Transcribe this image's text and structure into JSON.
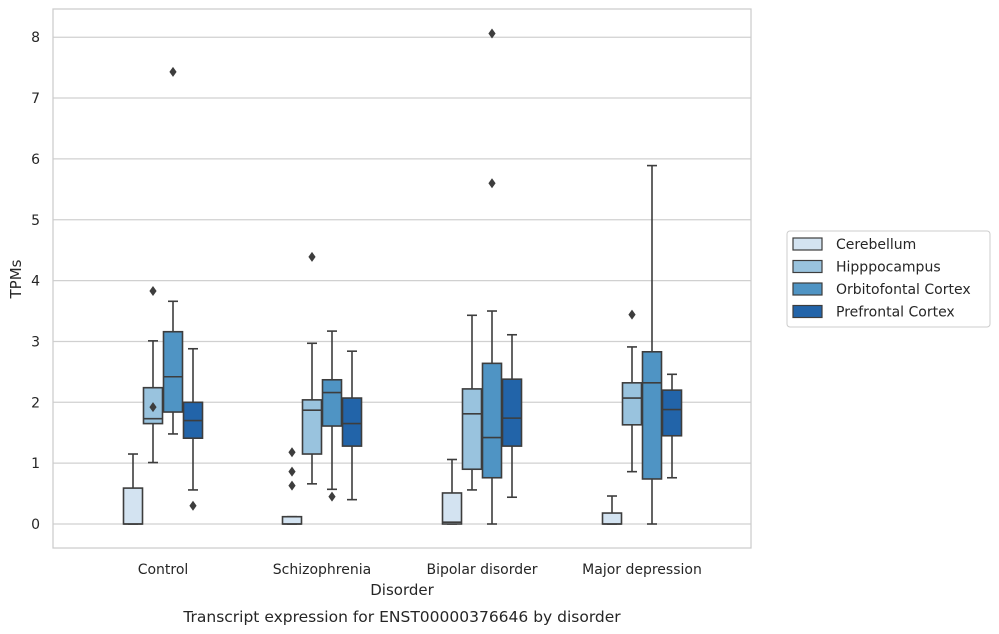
{
  "chart_data": {
    "type": "box",
    "title": "",
    "caption": "Transcript expression for ENST00000376646 by disorder",
    "xlabel": "Disorder",
    "ylabel": "TPMs",
    "ylim": [
      -0.4,
      8.5
    ],
    "yticks": [
      0,
      1,
      2,
      3,
      4,
      5,
      6,
      7,
      8
    ],
    "grid": "horizontal",
    "legend_position": "right",
    "categories": [
      "Control",
      "Schizophrenia",
      "Bipolar disorder",
      "Major depression"
    ],
    "series": [
      {
        "name": "Cerebellum",
        "color": "#d3e3f1",
        "boxes": [
          {
            "whisker_low": 0.0,
            "q1": 0.0,
            "median": 0.0,
            "q3": 0.59,
            "whisker_high": 1.15,
            "outliers": []
          },
          {
            "whisker_low": 0.0,
            "q1": 0.0,
            "median": 0.0,
            "q3": 0.12,
            "whisker_high": 0.12,
            "outliers": [
              0.63,
              0.86,
              1.18
            ]
          },
          {
            "whisker_low": 0.0,
            "q1": 0.0,
            "median": 0.03,
            "q3": 0.51,
            "whisker_high": 1.06,
            "outliers": []
          },
          {
            "whisker_low": 0.0,
            "q1": 0.0,
            "median": 0.0,
            "q3": 0.18,
            "whisker_high": 0.46,
            "outliers": []
          }
        ]
      },
      {
        "name": "Hipppocampus",
        "color": "#99c3de",
        "boxes": [
          {
            "whisker_low": 1.01,
            "q1": 1.65,
            "median": 1.73,
            "q3": 2.24,
            "whisker_high": 3.01,
            "outliers": [
              1.92,
              3.83
            ]
          },
          {
            "whisker_low": 0.66,
            "q1": 1.15,
            "median": 1.87,
            "q3": 2.04,
            "whisker_high": 2.97,
            "outliers": [
              4.39
            ]
          },
          {
            "whisker_low": 0.56,
            "q1": 0.9,
            "median": 1.81,
            "q3": 2.22,
            "whisker_high": 3.43,
            "outliers": []
          },
          {
            "whisker_low": 0.86,
            "q1": 1.63,
            "median": 2.07,
            "q3": 2.32,
            "whisker_high": 2.91,
            "outliers": [
              3.44
            ]
          }
        ]
      },
      {
        "name": "Orbitofontal Cortex",
        "color": "#4f94c4",
        "boxes": [
          {
            "whisker_low": 1.48,
            "q1": 1.84,
            "median": 2.42,
            "q3": 3.16,
            "whisker_high": 3.66,
            "outliers": [
              7.43
            ]
          },
          {
            "whisker_low": 0.57,
            "q1": 1.61,
            "median": 2.16,
            "q3": 2.37,
            "whisker_high": 3.17,
            "outliers": [
              0.45
            ]
          },
          {
            "whisker_low": 0.0,
            "q1": 0.76,
            "median": 1.42,
            "q3": 2.64,
            "whisker_high": 3.5,
            "outliers": [
              5.6,
              8.06
            ]
          },
          {
            "whisker_low": 0.0,
            "q1": 0.74,
            "median": 2.32,
            "q3": 2.83,
            "whisker_high": 5.89,
            "outliers": []
          }
        ]
      },
      {
        "name": "Prefrontal Cortex",
        "color": "#2264a9",
        "boxes": [
          {
            "whisker_low": 0.56,
            "q1": 1.41,
            "median": 1.7,
            "q3": 2.0,
            "whisker_high": 2.88,
            "outliers": [
              0.3
            ]
          },
          {
            "whisker_low": 0.4,
            "q1": 1.28,
            "median": 1.65,
            "q3": 2.07,
            "whisker_high": 2.84,
            "outliers": []
          },
          {
            "whisker_low": 0.44,
            "q1": 1.28,
            "median": 1.74,
            "q3": 2.38,
            "whisker_high": 3.11,
            "outliers": []
          },
          {
            "whisker_low": 0.76,
            "q1": 1.45,
            "median": 1.88,
            "q3": 2.2,
            "whisker_high": 2.46,
            "outliers": []
          }
        ]
      }
    ]
  }
}
